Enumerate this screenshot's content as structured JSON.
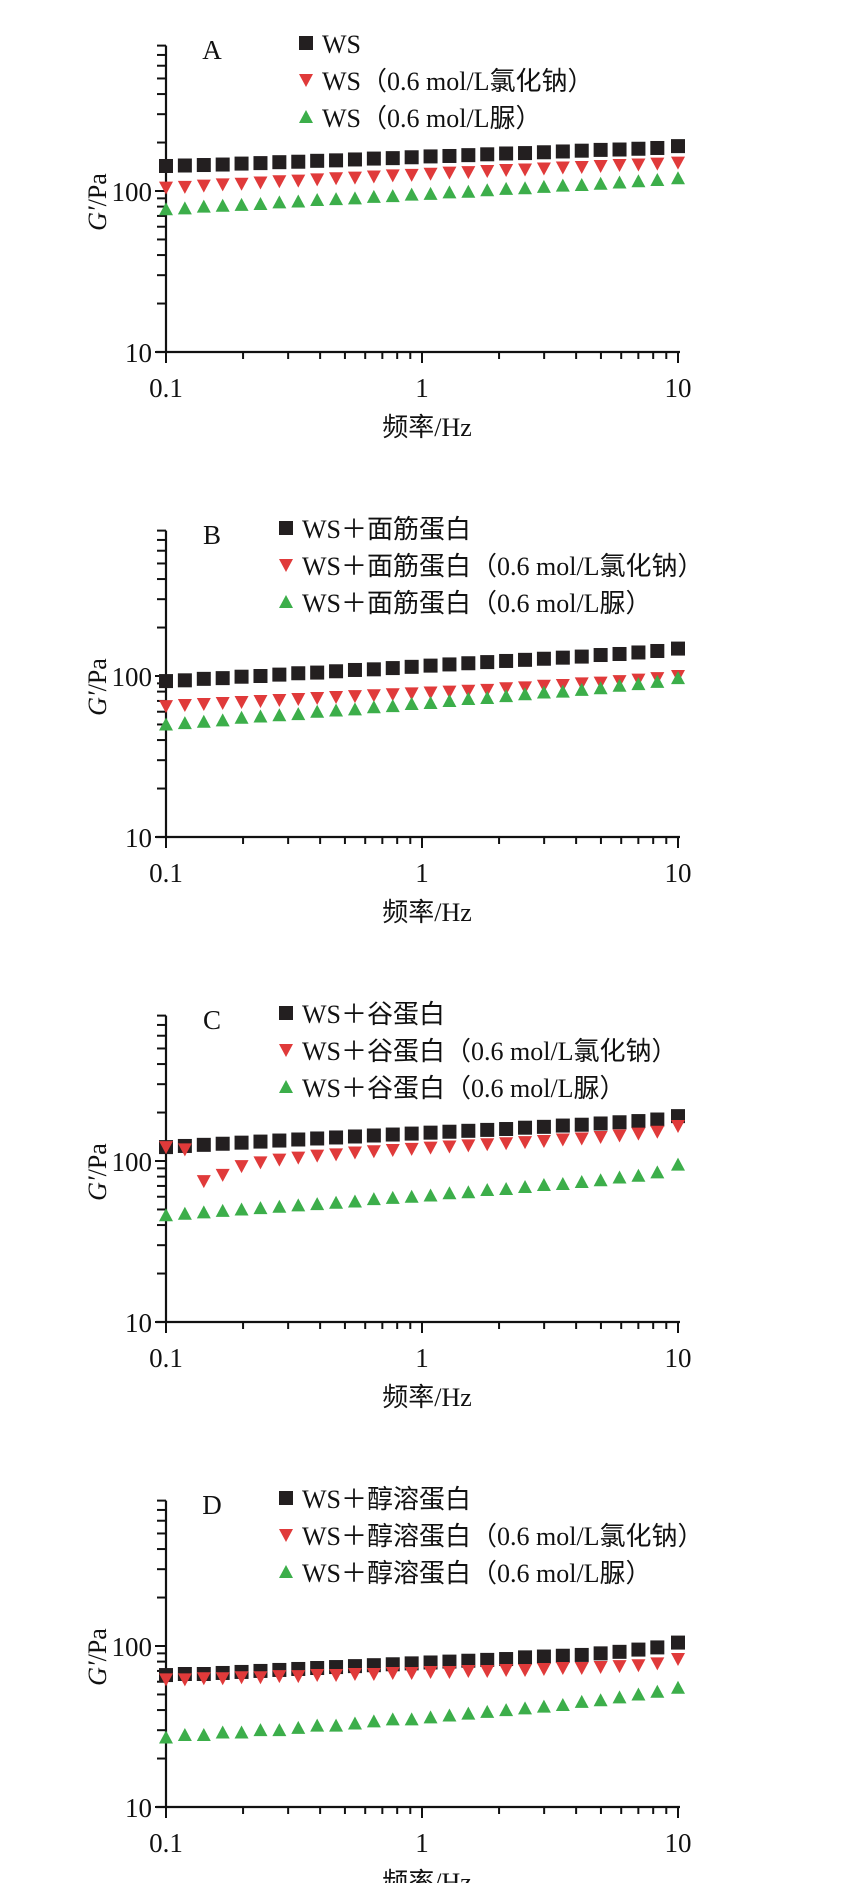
{
  "chart_data": [
    {
      "type": "scatter",
      "panel_label": "A",
      "xlabel": "频率/Hz",
      "ylabel_italic": "G′",
      "ylabel_unit": "/Pa",
      "xscale": "log",
      "yscale": "log",
      "xlim": [
        0.1,
        10
      ],
      "ylim": [
        10,
        800
      ],
      "xticks": [
        "0.1",
        "1",
        "10"
      ],
      "xtick_values": [
        0.1,
        1,
        10
      ],
      "yticks": [
        "10",
        "100"
      ],
      "ytick_values": [
        10,
        100
      ],
      "legend_position": "top",
      "x": [
        0.1,
        0.1185,
        0.1405,
        0.1665,
        0.1973,
        0.2339,
        0.2772,
        0.3286,
        0.3895,
        0.4616,
        0.5472,
        0.6486,
        0.7687,
        0.9112,
        1.08,
        1.28,
        1.517,
        1.798,
        2.131,
        2.526,
        2.994,
        3.549,
        4.207,
        4.986,
        5.91,
        7.005,
        8.303,
        10
      ],
      "series": [
        {
          "name": "WS",
          "marker": "square",
          "color": "#231f20",
          "values": [
            143,
            144,
            145,
            146,
            148,
            149,
            151,
            152,
            154,
            155,
            157,
            159,
            160,
            162,
            164,
            165,
            167,
            169,
            171,
            172,
            174,
            176,
            178,
            180,
            181,
            183,
            185,
            190
          ]
        },
        {
          "name": "WS（0.6 mol/L氯化钠）",
          "marker": "triangle-down",
          "color": "#e03a3a",
          "values": [
            105,
            106,
            108,
            110,
            111,
            113,
            115,
            116,
            118,
            120,
            121,
            123,
            125,
            126,
            128,
            130,
            131,
            133,
            135,
            136,
            138,
            140,
            141,
            143,
            145,
            146,
            148,
            150
          ]
        },
        {
          "name": "WS（0.6 mol/L脲）",
          "marker": "triangle-up",
          "color": "#3cae4a",
          "values": [
            77,
            78,
            80,
            81,
            82,
            83,
            85,
            86,
            88,
            89,
            90,
            92,
            93,
            95,
            96,
            98,
            99,
            101,
            103,
            104,
            106,
            108,
            109,
            111,
            113,
            115,
            117,
            120
          ]
        }
      ]
    },
    {
      "type": "scatter",
      "panel_label": "B",
      "xlabel": "频率/Hz",
      "ylabel_italic": "G′",
      "ylabel_unit": "/Pa",
      "xscale": "log",
      "yscale": "log",
      "xlim": [
        0.1,
        10
      ],
      "ylim": [
        10,
        800
      ],
      "xticks": [
        "0.1",
        "1",
        "10"
      ],
      "xtick_values": [
        0.1,
        1,
        10
      ],
      "yticks": [
        "10",
        "100"
      ],
      "ytick_values": [
        10,
        100
      ],
      "legend_position": "top",
      "x": [
        0.1,
        0.1185,
        0.1405,
        0.1665,
        0.1973,
        0.2339,
        0.2772,
        0.3286,
        0.3895,
        0.4616,
        0.5472,
        0.6486,
        0.7687,
        0.9112,
        1.08,
        1.28,
        1.517,
        1.798,
        2.131,
        2.526,
        2.994,
        3.549,
        4.207,
        4.986,
        5.91,
        7.005,
        8.303,
        10
      ],
      "series": [
        {
          "name": "WS＋面筋蛋白",
          "marker": "square",
          "color": "#231f20",
          "values": [
            93,
            94,
            96,
            97,
            99,
            100,
            102,
            104,
            105,
            107,
            109,
            110,
            112,
            114,
            116,
            118,
            120,
            122,
            124,
            126,
            128,
            130,
            132,
            135,
            137,
            140,
            143,
            148
          ]
        },
        {
          "name": "WS＋面筋蛋白（0.6 mol/L氯化钠）",
          "marker": "triangle-down",
          "color": "#e03a3a",
          "values": [
            65,
            66,
            67,
            68,
            69,
            70,
            71,
            72,
            73,
            74,
            75,
            76,
            77,
            78,
            79,
            80,
            81,
            82,
            84,
            85,
            87,
            88,
            90,
            91,
            93,
            95,
            97,
            100
          ]
        },
        {
          "name": "WS＋面筋蛋白（0.6 mol/L脲）",
          "marker": "triangle-up",
          "color": "#3cae4a",
          "values": [
            50,
            51,
            52,
            53,
            55,
            56,
            57,
            58,
            60,
            61,
            62,
            64,
            65,
            67,
            68,
            70,
            72,
            73,
            75,
            77,
            79,
            80,
            82,
            84,
            87,
            89,
            92,
            97
          ]
        }
      ]
    },
    {
      "type": "scatter",
      "panel_label": "C",
      "xlabel": "频率/Hz",
      "ylabel_italic": "G′",
      "ylabel_unit": "/Pa",
      "xscale": "log",
      "yscale": "log",
      "xlim": [
        0.1,
        10
      ],
      "ylim": [
        10,
        800
      ],
      "xticks": [
        "0.1",
        "1",
        "10"
      ],
      "xtick_values": [
        0.1,
        1,
        10
      ],
      "yticks": [
        "10",
        "100"
      ],
      "ytick_values": [
        10,
        100
      ],
      "legend_position": "top",
      "x": [
        0.1,
        0.1185,
        0.1405,
        0.1665,
        0.1973,
        0.2339,
        0.2772,
        0.3286,
        0.3895,
        0.4616,
        0.5472,
        0.6486,
        0.7687,
        0.9112,
        1.08,
        1.28,
        1.517,
        1.798,
        2.131,
        2.526,
        2.994,
        3.549,
        4.207,
        4.986,
        5.91,
        7.005,
        8.303,
        10
      ],
      "series": [
        {
          "name": "WS＋谷蛋白",
          "marker": "square",
          "color": "#231f20",
          "values": [
            122,
            124,
            126,
            128,
            130,
            132,
            134,
            136,
            138,
            140,
            142,
            144,
            146,
            148,
            150,
            152,
            154,
            156,
            158,
            161,
            163,
            166,
            168,
            171,
            174,
            177,
            181,
            190
          ]
        },
        {
          "name": "WS＋谷蛋白（0.6 mol/L氯化钠）",
          "marker": "triangle-down",
          "color": "#e03a3a",
          "values": [
            122,
            118,
            75,
            82,
            93,
            98,
            102,
            105,
            108,
            110,
            113,
            115,
            117,
            119,
            121,
            123,
            125,
            127,
            129,
            131,
            133,
            136,
            138,
            141,
            144,
            148,
            152,
            165
          ]
        },
        {
          "name": "WS＋谷蛋白（0.6 mol/L脲）",
          "marker": "triangle-up",
          "color": "#3cae4a",
          "values": [
            46,
            47,
            48,
            49,
            50,
            51,
            52,
            53,
            54,
            55,
            56,
            58,
            59,
            60,
            61,
            63,
            64,
            66,
            67,
            69,
            71,
            72,
            74,
            76,
            79,
            81,
            85,
            95
          ]
        }
      ]
    },
    {
      "type": "scatter",
      "panel_label": "D",
      "xlabel": "频率/Hz",
      "ylabel_italic": "G′",
      "ylabel_unit": "/Pa",
      "xscale": "log",
      "yscale": "log",
      "xlim": [
        0.1,
        10
      ],
      "ylim": [
        10,
        800
      ],
      "xticks": [
        "0.1",
        "1",
        "10"
      ],
      "xtick_values": [
        0.1,
        1,
        10
      ],
      "yticks": [
        "10",
        "100"
      ],
      "ytick_values": [
        10,
        100
      ],
      "legend_position": "top",
      "x": [
        0.1,
        0.1185,
        0.1405,
        0.1665,
        0.1973,
        0.2339,
        0.2772,
        0.3286,
        0.3895,
        0.4616,
        0.5472,
        0.6486,
        0.7687,
        0.9112,
        1.08,
        1.28,
        1.517,
        1.798,
        2.131,
        2.526,
        2.994,
        3.549,
        4.207,
        4.986,
        5.91,
        7.005,
        8.303,
        10
      ],
      "series": [
        {
          "name": "WS＋醇溶蛋白",
          "marker": "square",
          "color": "#231f20",
          "values": [
            66,
            67,
            67,
            68,
            69,
            70,
            71,
            72,
            73,
            74,
            75,
            76,
            77,
            78,
            79,
            80,
            81,
            82,
            83,
            85,
            86,
            87,
            88,
            90,
            92,
            95,
            98,
            105
          ]
        },
        {
          "name": "WS＋醇溶蛋白（0.6 mol/L氯化钠）",
          "marker": "triangle-down",
          "color": "#e03a3a",
          "values": [
            62,
            62,
            63,
            63,
            64,
            64,
            65,
            65,
            66,
            66,
            67,
            67,
            68,
            68,
            69,
            69,
            70,
            70,
            71,
            71,
            72,
            73,
            73,
            74,
            75,
            76,
            78,
            83
          ]
        },
        {
          "name": "WS＋醇溶蛋白（0.6 mol/L脲）",
          "marker": "triangle-up",
          "color": "#3cae4a",
          "values": [
            27,
            28,
            28,
            29,
            29,
            30,
            30,
            31,
            32,
            32,
            33,
            34,
            35,
            35,
            36,
            37,
            38,
            39,
            40,
            41,
            42,
            43,
            45,
            46,
            48,
            50,
            52,
            55
          ]
        }
      ]
    }
  ]
}
